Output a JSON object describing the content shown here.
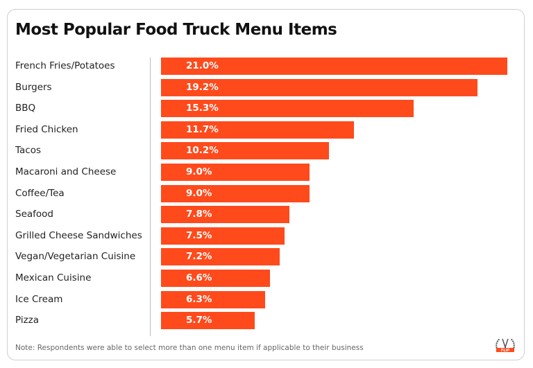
{
  "chart_data": {
    "type": "bar",
    "orientation": "horizontal",
    "title": "Most Popular Food Truck Menu Items",
    "categories": [
      "French Fries/Potatoes",
      "Burgers",
      "BBQ",
      "Fried Chicken",
      "Tacos",
      "Macaroni and Cheese",
      "Coffee/Tea",
      "Seafood",
      "Grilled Cheese Sandwiches",
      "Vegan/Vegetarian Cuisine",
      "Mexican Cuisine",
      "Ice Cream",
      "Pizza"
    ],
    "values": [
      21.0,
      19.2,
      15.3,
      11.7,
      10.2,
      9.0,
      9.0,
      7.8,
      7.5,
      7.2,
      6.6,
      6.3,
      5.7
    ],
    "value_labels": [
      "21.0%",
      "19.2%",
      "15.3%",
      "11.7%",
      "10.2%",
      "9.0%",
      "9.0%",
      "7.8%",
      "7.5%",
      "7.2%",
      "6.6%",
      "6.3%",
      "5.7%"
    ],
    "unit": "%",
    "bar_color": "#FF4A1C",
    "grid": false,
    "legend": "none"
  },
  "note": "Note: Respondents were able to select more than one menu item if applicable to their business",
  "logo": {
    "text": "FLIP",
    "color": "#FF4A1C"
  }
}
